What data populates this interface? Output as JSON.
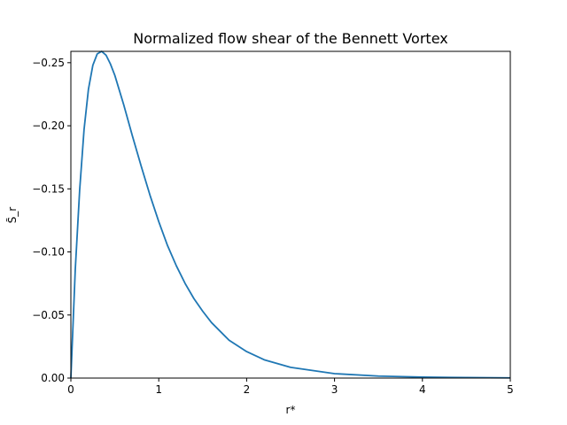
{
  "chart_data": {
    "type": "line",
    "title": "Normalized flow shear of the Bennett Vortex",
    "xlabel": "r*",
    "ylabel": "S̃_r",
    "xlim": [
      0,
      5
    ],
    "ylim": [
      0,
      -0.259
    ],
    "y_axis_inverted": true,
    "grid": false,
    "legend": "none",
    "x_ticks": [
      "0",
      "1",
      "2",
      "3",
      "4",
      "5"
    ],
    "y_ticks": [
      "0.00",
      "−0.05",
      "−0.10",
      "−0.15",
      "−0.20",
      "−0.25"
    ],
    "series": [
      {
        "color": "#1f77b4",
        "x": [
          0,
          0.05,
          0.1,
          0.15,
          0.2,
          0.25,
          0.3,
          0.35,
          0.4,
          0.45,
          0.5,
          0.6,
          0.7,
          0.8,
          0.9,
          1.0,
          1.1,
          1.2,
          1.3,
          1.4,
          1.5,
          1.6,
          1.8,
          2.0,
          2.2,
          2.5,
          3.0,
          3.5,
          4.0,
          4.5,
          5.0
        ],
        "y": [
          0,
          -0.086,
          -0.149,
          -0.197,
          -0.229,
          -0.248,
          -0.257,
          -0.259,
          -0.256,
          -0.249,
          -0.24,
          -0.217,
          -0.192,
          -0.168,
          -0.145,
          -0.124,
          -0.105,
          -0.089,
          -0.075,
          -0.063,
          -0.053,
          -0.044,
          -0.03,
          -0.021,
          -0.0145,
          -0.0085,
          -0.0035,
          -0.0016,
          -0.0008,
          -0.0004,
          -0.0002
        ]
      }
    ]
  }
}
